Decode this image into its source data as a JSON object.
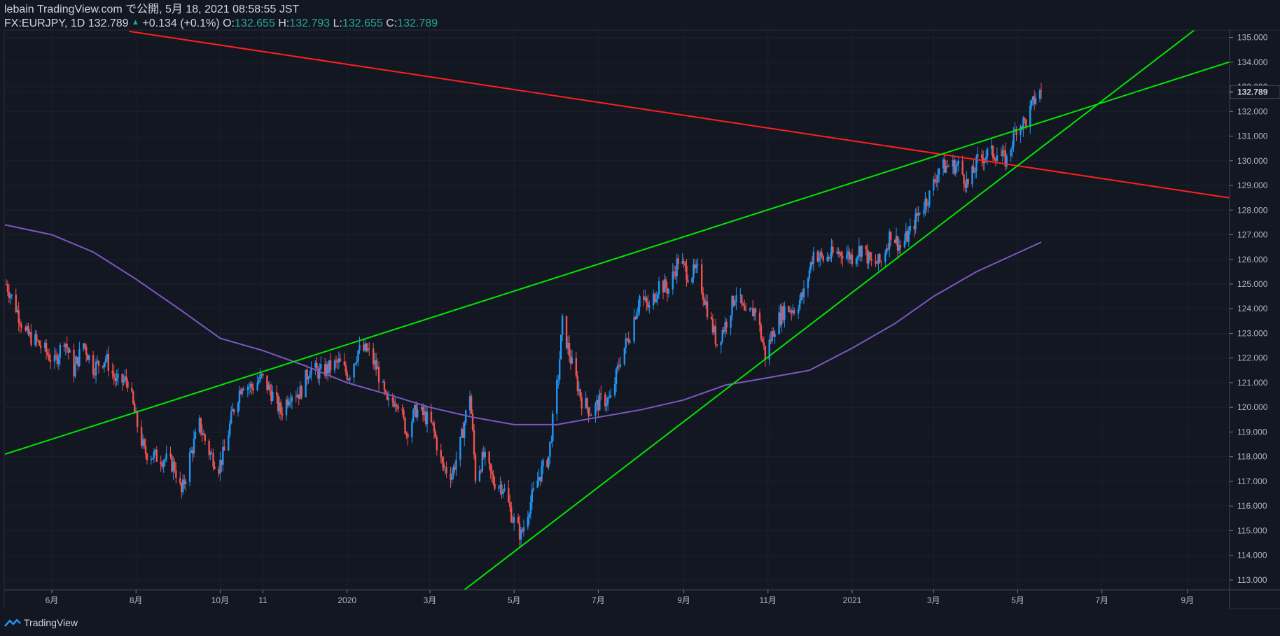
{
  "header": {
    "line1": "lebain TradingView.com で公開, 5月 18, 2021 08:58:55 JST",
    "symbol": "FX:EURJPY, 1D 132.789",
    "change": "+0.134 (+0.1%)",
    "o_label": "O:",
    "o_value": "132.655",
    "h_label": "H:",
    "h_value": "132.793",
    "l_label": "L:",
    "l_value": "132.655",
    "c_label": "C:",
    "c_value": "132.789"
  },
  "footer": {
    "brand": "TradingView",
    "logo_icon": "tradingview-logo-icon"
  },
  "colors": {
    "background": "#131722",
    "up": "#2196f3",
    "down": "#ef5350",
    "ma": "#7e57c2",
    "trend_green": "#00e600",
    "trend_red": "#ff1f1f",
    "price_label_bg": "#131722"
  },
  "chart_data": {
    "type": "candlestick",
    "symbol": "FX:EURJPY",
    "interval": "1D",
    "last_price": 132.789,
    "last_price_label": "132.789",
    "y_range": [
      112.6,
      135.3
    ],
    "y_ticks": [
      "113.000",
      "114.000",
      "115.000",
      "116.000",
      "117.000",
      "118.000",
      "119.000",
      "120.000",
      "121.000",
      "122.000",
      "123.000",
      "124.000",
      "125.000",
      "126.000",
      "127.000",
      "128.000",
      "129.000",
      "130.000",
      "131.000",
      "132.000",
      "133.000",
      "134.000",
      "135.000"
    ],
    "x_range": [
      "2019-04-28",
      "2021-10-01"
    ],
    "x_ticks": [
      {
        "label": "6月",
        "date": "2019-06-01"
      },
      {
        "label": "8月",
        "date": "2019-08-01"
      },
      {
        "label": "10月",
        "date": "2019-10-01"
      },
      {
        "label": "11",
        "date": "2019-11-01"
      },
      {
        "label": "2020",
        "date": "2020-01-01"
      },
      {
        "label": "3月",
        "date": "2020-03-01"
      },
      {
        "label": "5月",
        "date": "2020-05-01"
      },
      {
        "label": "7月",
        "date": "2020-07-01"
      },
      {
        "label": "9月",
        "date": "2020-09-01"
      },
      {
        "label": "11月",
        "date": "2020-11-01"
      },
      {
        "label": "2021",
        "date": "2021-01-01"
      },
      {
        "label": "3月",
        "date": "2021-03-01"
      },
      {
        "label": "5月",
        "date": "2021-05-01"
      },
      {
        "label": "7月",
        "date": "2021-07-01"
      },
      {
        "label": "9月",
        "date": "2021-09-01"
      }
    ],
    "price_path": [
      [
        "2019-04-29",
        125.0
      ],
      [
        "2019-05-05",
        124.2
      ],
      [
        "2019-05-13",
        123.0
      ],
      [
        "2019-05-20",
        122.7
      ],
      [
        "2019-05-27",
        122.3
      ],
      [
        "2019-06-03",
        121.8
      ],
      [
        "2019-06-10",
        122.8
      ],
      [
        "2019-06-17",
        121.5
      ],
      [
        "2019-06-24",
        122.6
      ],
      [
        "2019-07-01",
        121.6
      ],
      [
        "2019-07-10",
        122.0
      ],
      [
        "2019-07-18",
        121.0
      ],
      [
        "2019-07-26",
        121.1
      ],
      [
        "2019-08-01",
        119.5
      ],
      [
        "2019-08-07",
        118.2
      ],
      [
        "2019-08-15",
        118.0
      ],
      [
        "2019-08-22",
        117.9
      ],
      [
        "2019-08-29",
        117.6
      ],
      [
        "2019-09-03",
        116.5
      ],
      [
        "2019-09-09",
        118.0
      ],
      [
        "2019-09-16",
        119.3
      ],
      [
        "2019-09-23",
        118.2
      ],
      [
        "2019-09-30",
        117.6
      ],
      [
        "2019-10-04",
        118.2
      ],
      [
        "2019-10-10",
        119.8
      ],
      [
        "2019-10-17",
        121.0
      ],
      [
        "2019-10-24",
        120.8
      ],
      [
        "2019-10-31",
        121.2
      ],
      [
        "2019-11-07",
        120.6
      ],
      [
        "2019-11-14",
        119.8
      ],
      [
        "2019-11-21",
        120.6
      ],
      [
        "2019-11-28",
        120.6
      ],
      [
        "2019-12-05",
        121.6
      ],
      [
        "2019-12-12",
        121.4
      ],
      [
        "2019-12-19",
        121.6
      ],
      [
        "2019-12-26",
        121.8
      ],
      [
        "2020-01-02",
        121.3
      ],
      [
        "2020-01-09",
        122.3
      ],
      [
        "2020-01-16",
        122.3
      ],
      [
        "2020-01-23",
        121.5
      ],
      [
        "2020-01-30",
        120.1
      ],
      [
        "2020-02-06",
        120.4
      ],
      [
        "2020-02-13",
        119.0
      ],
      [
        "2020-02-20",
        119.9
      ],
      [
        "2020-02-27",
        119.6
      ],
      [
        "2020-03-03",
        119.2
      ],
      [
        "2020-03-10",
        117.6
      ],
      [
        "2020-03-17",
        117.3
      ],
      [
        "2020-03-23",
        118.5
      ],
      [
        "2020-03-30",
        120.6
      ],
      [
        "2020-04-03",
        117.2
      ],
      [
        "2020-04-09",
        118.0
      ],
      [
        "2020-04-16",
        117.0
      ],
      [
        "2020-04-23",
        116.8
      ],
      [
        "2020-04-30",
        115.5
      ],
      [
        "2020-05-06",
        114.8
      ],
      [
        "2020-05-12",
        116.0
      ],
      [
        "2020-05-19",
        117.2
      ],
      [
        "2020-05-26",
        118.0
      ],
      [
        "2020-06-02",
        121.3
      ],
      [
        "2020-06-05",
        123.4
      ],
      [
        "2020-06-12",
        121.7
      ],
      [
        "2020-06-19",
        120.3
      ],
      [
        "2020-06-26",
        119.8
      ],
      [
        "2020-07-03",
        120.3
      ],
      [
        "2020-07-10",
        120.3
      ],
      [
        "2020-07-17",
        122.0
      ],
      [
        "2020-07-24",
        123.0
      ],
      [
        "2020-07-31",
        124.5
      ],
      [
        "2020-08-07",
        124.0
      ],
      [
        "2020-08-14",
        125.0
      ],
      [
        "2020-08-21",
        124.8
      ],
      [
        "2020-08-28",
        126.0
      ],
      [
        "2020-09-04",
        125.4
      ],
      [
        "2020-09-11",
        125.5
      ],
      [
        "2020-09-18",
        124.0
      ],
      [
        "2020-09-25",
        122.6
      ],
      [
        "2020-10-02",
        123.5
      ],
      [
        "2020-10-09",
        124.7
      ],
      [
        "2020-10-16",
        123.6
      ],
      [
        "2020-10-23",
        124.0
      ],
      [
        "2020-10-30",
        122.1
      ],
      [
        "2020-11-06",
        123.3
      ],
      [
        "2020-11-13",
        124.0
      ],
      [
        "2020-11-20",
        124.0
      ],
      [
        "2020-11-27",
        124.6
      ],
      [
        "2020-12-04",
        126.3
      ],
      [
        "2020-12-11",
        126.0
      ],
      [
        "2020-12-18",
        126.2
      ],
      [
        "2020-12-25",
        126.3
      ],
      [
        "2021-01-01",
        126.1
      ],
      [
        "2021-01-08",
        126.5
      ],
      [
        "2021-01-15",
        125.8
      ],
      [
        "2021-01-22",
        125.9
      ],
      [
        "2021-01-29",
        127.1
      ],
      [
        "2021-02-05",
        126.5
      ],
      [
        "2021-02-12",
        127.1
      ],
      [
        "2021-02-19",
        128.0
      ],
      [
        "2021-02-26",
        128.6
      ],
      [
        "2021-03-05",
        129.7
      ],
      [
        "2021-03-12",
        129.8
      ],
      [
        "2021-03-19",
        129.8
      ],
      [
        "2021-03-26",
        129.0
      ],
      [
        "2021-04-02",
        130.0
      ],
      [
        "2021-04-09",
        130.3
      ],
      [
        "2021-04-16",
        130.3
      ],
      [
        "2021-04-23",
        130.0
      ],
      [
        "2021-04-30",
        131.4
      ],
      [
        "2021-05-07",
        131.6
      ],
      [
        "2021-05-14",
        132.6
      ],
      [
        "2021-05-18",
        132.789
      ]
    ],
    "ma_path": [
      [
        "2019-04-28",
        127.4
      ],
      [
        "2019-06-01",
        127.0
      ],
      [
        "2019-07-01",
        126.3
      ],
      [
        "2019-08-01",
        125.2
      ],
      [
        "2019-09-01",
        124.0
      ],
      [
        "2019-10-01",
        122.8
      ],
      [
        "2019-11-01",
        122.3
      ],
      [
        "2019-12-01",
        121.7
      ],
      [
        "2020-01-01",
        121.0
      ],
      [
        "2020-02-01",
        120.5
      ],
      [
        "2020-03-01",
        120.0
      ],
      [
        "2020-04-01",
        119.6
      ],
      [
        "2020-05-01",
        119.3
      ],
      [
        "2020-06-01",
        119.3
      ],
      [
        "2020-07-01",
        119.6
      ],
      [
        "2020-08-01",
        119.9
      ],
      [
        "2020-09-01",
        120.3
      ],
      [
        "2020-10-01",
        120.9
      ],
      [
        "2020-11-01",
        121.2
      ],
      [
        "2020-12-01",
        121.5
      ],
      [
        "2021-01-01",
        122.4
      ],
      [
        "2021-02-01",
        123.4
      ],
      [
        "2021-03-01",
        124.5
      ],
      [
        "2021-04-01",
        125.5
      ],
      [
        "2021-05-18",
        126.7
      ]
    ],
    "trendlines": [
      {
        "color": "trend_red",
        "from": [
          "2019-07-27",
          135.25
        ],
        "to": [
          "2021-10-01",
          128.5
        ]
      },
      {
        "color": "trend_green",
        "from": [
          "2019-04-28",
          118.1
        ],
        "to": [
          "2021-10-01",
          134.0
        ]
      },
      {
        "color": "trend_green",
        "from": [
          "2020-03-26",
          112.6
        ],
        "to": [
          "2021-09-06",
          135.3
        ]
      }
    ]
  }
}
